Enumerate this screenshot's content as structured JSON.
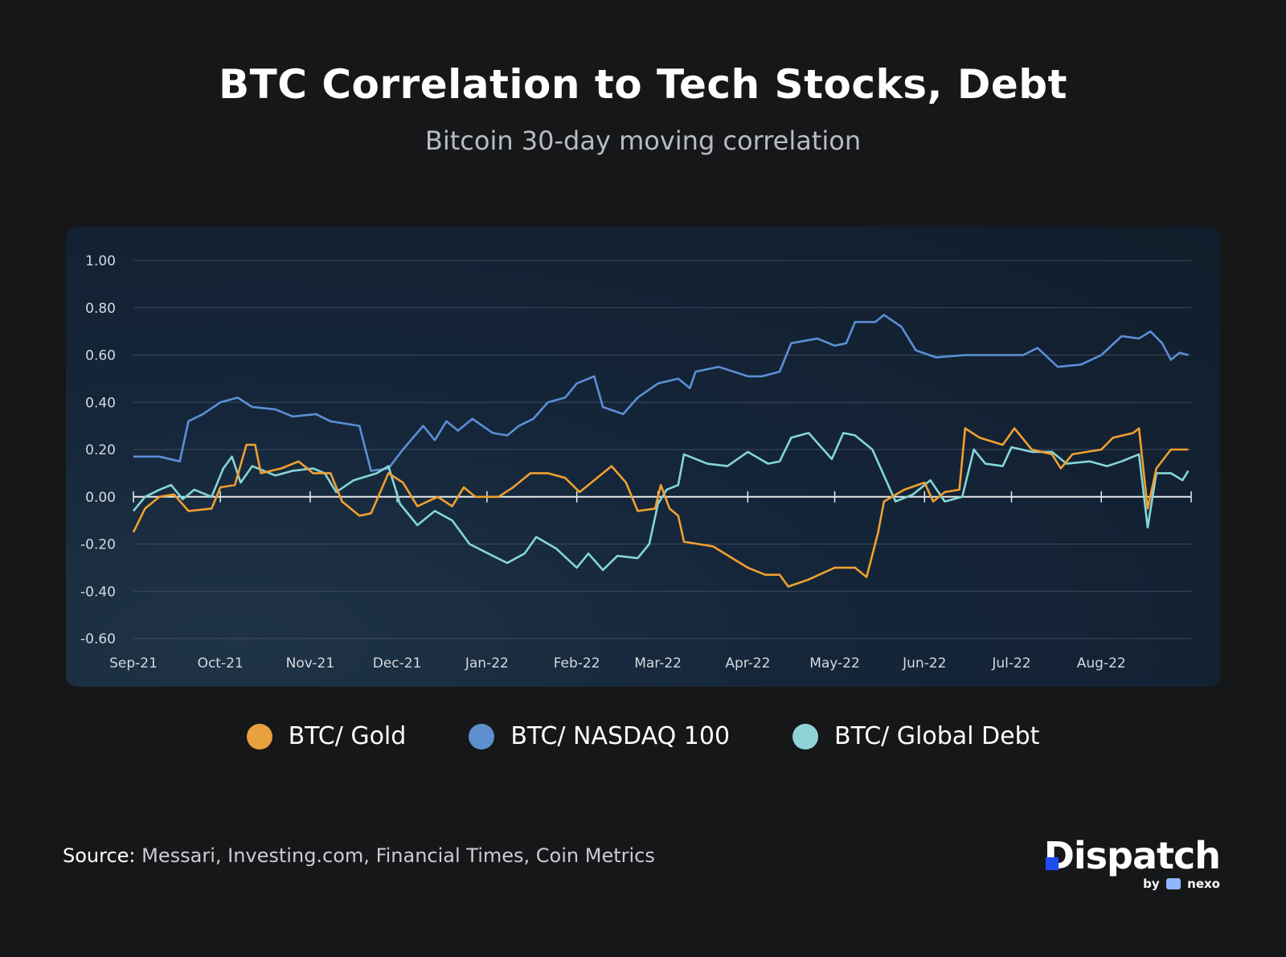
{
  "chart_data": {
    "type": "line",
    "title": "BTC Correlation to Tech Stocks, Debt",
    "subtitle": "Bitcoin 30-day moving correlation",
    "xlabel": "",
    "ylabel": "",
    "ylim": [
      -0.6,
      1.0
    ],
    "yticks": [
      "1.00",
      "0.80",
      "0.60",
      "0.40",
      "0.20",
      "0.00",
      "-0.20",
      "-0.40",
      "-0.60"
    ],
    "xlim": [
      "2021-09-01",
      "2022-09-01"
    ],
    "xticks": [
      {
        "date": "2021-09-01",
        "label": "Sep-21"
      },
      {
        "date": "2021-10-01",
        "label": "Oct-21"
      },
      {
        "date": "2021-11-01",
        "label": "Nov-21"
      },
      {
        "date": "2021-12-01",
        "label": "Dec-21"
      },
      {
        "date": "2022-01-01",
        "label": "Jan-22"
      },
      {
        "date": "2022-02-01",
        "label": "Feb-22"
      },
      {
        "date": "2022-03-01",
        "label": "Mar-22"
      },
      {
        "date": "2022-04-01",
        "label": "Apr-22"
      },
      {
        "date": "2022-05-01",
        "label": "May-22"
      },
      {
        "date": "2022-06-01",
        "label": "Jun-22"
      },
      {
        "date": "2022-07-01",
        "label": "Jul-22"
      },
      {
        "date": "2022-08-01",
        "label": "Aug-22"
      }
    ],
    "grid": true,
    "legend_position": "bottom",
    "series": [
      {
        "name": "BTC/ Gold",
        "color": "#f0a030",
        "points": [
          [
            "2021-09-01",
            -0.15
          ],
          [
            "2021-09-05",
            -0.05
          ],
          [
            "2021-09-10",
            0.0
          ],
          [
            "2021-09-15",
            0.01
          ],
          [
            "2021-09-20",
            -0.06
          ],
          [
            "2021-09-28",
            -0.05
          ],
          [
            "2021-10-01",
            0.04
          ],
          [
            "2021-10-06",
            0.05
          ],
          [
            "2021-10-10",
            0.22
          ],
          [
            "2021-10-13",
            0.22
          ],
          [
            "2021-10-15",
            0.1
          ],
          [
            "2021-10-22",
            0.12
          ],
          [
            "2021-10-28",
            0.15
          ],
          [
            "2021-11-02",
            0.1
          ],
          [
            "2021-11-08",
            0.1
          ],
          [
            "2021-11-12",
            -0.02
          ],
          [
            "2021-11-18",
            -0.08
          ],
          [
            "2021-11-22",
            -0.07
          ],
          [
            "2021-11-28",
            0.1
          ],
          [
            "2021-12-03",
            0.06
          ],
          [
            "2021-12-08",
            -0.04
          ],
          [
            "2021-12-15",
            0.0
          ],
          [
            "2021-12-20",
            -0.04
          ],
          [
            "2021-12-24",
            0.04
          ],
          [
            "2021-12-28",
            0.0
          ],
          [
            "2022-01-05",
            0.0
          ],
          [
            "2022-01-10",
            0.04
          ],
          [
            "2022-01-16",
            0.1
          ],
          [
            "2022-01-22",
            0.1
          ],
          [
            "2022-01-28",
            0.08
          ],
          [
            "2022-02-02",
            0.02
          ],
          [
            "2022-02-08",
            0.08
          ],
          [
            "2022-02-13",
            0.13
          ],
          [
            "2022-02-18",
            0.06
          ],
          [
            "2022-02-22",
            -0.06
          ],
          [
            "2022-02-28",
            -0.05
          ],
          [
            "2022-03-02",
            0.05
          ],
          [
            "2022-03-05",
            -0.05
          ],
          [
            "2022-03-08",
            -0.08
          ],
          [
            "2022-03-10",
            -0.19
          ],
          [
            "2022-03-20",
            -0.21
          ],
          [
            "2022-04-01",
            -0.3
          ],
          [
            "2022-04-07",
            -0.33
          ],
          [
            "2022-04-12",
            -0.33
          ],
          [
            "2022-04-15",
            -0.38
          ],
          [
            "2022-04-22",
            -0.35
          ],
          [
            "2022-05-01",
            -0.3
          ],
          [
            "2022-05-08",
            -0.3
          ],
          [
            "2022-05-12",
            -0.34
          ],
          [
            "2022-05-16",
            -0.15
          ],
          [
            "2022-05-18",
            -0.02
          ],
          [
            "2022-05-25",
            0.03
          ],
          [
            "2022-06-01",
            0.06
          ],
          [
            "2022-06-04",
            -0.02
          ],
          [
            "2022-06-08",
            0.02
          ],
          [
            "2022-06-13",
            0.03
          ],
          [
            "2022-06-15",
            0.29
          ],
          [
            "2022-06-20",
            0.25
          ],
          [
            "2022-06-28",
            0.22
          ],
          [
            "2022-07-02",
            0.29
          ],
          [
            "2022-07-08",
            0.2
          ],
          [
            "2022-07-15",
            0.18
          ],
          [
            "2022-07-18",
            0.12
          ],
          [
            "2022-07-22",
            0.18
          ],
          [
            "2022-08-01",
            0.2
          ],
          [
            "2022-08-05",
            0.25
          ],
          [
            "2022-08-12",
            0.27
          ],
          [
            "2022-08-14",
            0.29
          ],
          [
            "2022-08-17",
            -0.05
          ],
          [
            "2022-08-20",
            0.12
          ],
          [
            "2022-08-25",
            0.2
          ],
          [
            "2022-08-31",
            0.2
          ]
        ]
      },
      {
        "name": "BTC/ NASDAQ 100",
        "color": "#5b8fd6",
        "points": [
          [
            "2021-09-01",
            0.17
          ],
          [
            "2021-09-10",
            0.17
          ],
          [
            "2021-09-17",
            0.15
          ],
          [
            "2021-09-20",
            0.32
          ],
          [
            "2021-09-25",
            0.35
          ],
          [
            "2021-10-01",
            0.4
          ],
          [
            "2021-10-07",
            0.42
          ],
          [
            "2021-10-12",
            0.38
          ],
          [
            "2021-10-20",
            0.37
          ],
          [
            "2021-10-26",
            0.34
          ],
          [
            "2021-11-03",
            0.35
          ],
          [
            "2021-11-08",
            0.32
          ],
          [
            "2021-11-18",
            0.3
          ],
          [
            "2021-11-22",
            0.11
          ],
          [
            "2021-11-28",
            0.12
          ],
          [
            "2021-12-03",
            0.2
          ],
          [
            "2021-12-10",
            0.3
          ],
          [
            "2021-12-14",
            0.24
          ],
          [
            "2021-12-18",
            0.32
          ],
          [
            "2021-12-22",
            0.28
          ],
          [
            "2021-12-27",
            0.33
          ],
          [
            "2022-01-03",
            0.27
          ],
          [
            "2022-01-08",
            0.26
          ],
          [
            "2022-01-12",
            0.3
          ],
          [
            "2022-01-17",
            0.33
          ],
          [
            "2022-01-22",
            0.4
          ],
          [
            "2022-01-28",
            0.42
          ],
          [
            "2022-02-01",
            0.48
          ],
          [
            "2022-02-07",
            0.51
          ],
          [
            "2022-02-10",
            0.38
          ],
          [
            "2022-02-17",
            0.35
          ],
          [
            "2022-02-22",
            0.42
          ],
          [
            "2022-03-01",
            0.48
          ],
          [
            "2022-03-08",
            0.5
          ],
          [
            "2022-03-12",
            0.46
          ],
          [
            "2022-03-14",
            0.53
          ],
          [
            "2022-03-22",
            0.55
          ],
          [
            "2022-04-01",
            0.51
          ],
          [
            "2022-04-06",
            0.51
          ],
          [
            "2022-04-12",
            0.53
          ],
          [
            "2022-04-16",
            0.65
          ],
          [
            "2022-04-25",
            0.67
          ],
          [
            "2022-05-01",
            0.64
          ],
          [
            "2022-05-05",
            0.65
          ],
          [
            "2022-05-08",
            0.74
          ],
          [
            "2022-05-15",
            0.74
          ],
          [
            "2022-05-18",
            0.77
          ],
          [
            "2022-05-24",
            0.72
          ],
          [
            "2022-05-29",
            0.62
          ],
          [
            "2022-06-05",
            0.59
          ],
          [
            "2022-06-15",
            0.6
          ],
          [
            "2022-06-25",
            0.6
          ],
          [
            "2022-07-05",
            0.6
          ],
          [
            "2022-07-10",
            0.63
          ],
          [
            "2022-07-17",
            0.55
          ],
          [
            "2022-07-25",
            0.56
          ],
          [
            "2022-08-01",
            0.6
          ],
          [
            "2022-08-08",
            0.68
          ],
          [
            "2022-08-14",
            0.67
          ],
          [
            "2022-08-18",
            0.7
          ],
          [
            "2022-08-22",
            0.65
          ],
          [
            "2022-08-25",
            0.58
          ],
          [
            "2022-08-28",
            0.61
          ],
          [
            "2022-08-31",
            0.6
          ]
        ]
      },
      {
        "name": "BTC/ Global Debt",
        "color": "#84d6d9",
        "points": [
          [
            "2021-09-01",
            -0.06
          ],
          [
            "2021-09-05",
            0.0
          ],
          [
            "2021-09-10",
            0.03
          ],
          [
            "2021-09-14",
            0.05
          ],
          [
            "2021-09-18",
            -0.01
          ],
          [
            "2021-09-22",
            0.03
          ],
          [
            "2021-09-28",
            0.0
          ],
          [
            "2021-10-02",
            0.12
          ],
          [
            "2021-10-05",
            0.17
          ],
          [
            "2021-10-08",
            0.06
          ],
          [
            "2021-10-12",
            0.13
          ],
          [
            "2021-10-20",
            0.09
          ],
          [
            "2021-10-26",
            0.11
          ],
          [
            "2021-11-02",
            0.12
          ],
          [
            "2021-11-06",
            0.1
          ],
          [
            "2021-11-10",
            0.02
          ],
          [
            "2021-11-16",
            0.07
          ],
          [
            "2021-11-24",
            0.1
          ],
          [
            "2021-11-28",
            0.13
          ],
          [
            "2021-12-02",
            -0.03
          ],
          [
            "2021-12-08",
            -0.12
          ],
          [
            "2021-12-14",
            -0.06
          ],
          [
            "2021-12-20",
            -0.1
          ],
          [
            "2021-12-26",
            -0.2
          ],
          [
            "2022-01-03",
            -0.25
          ],
          [
            "2022-01-08",
            -0.28
          ],
          [
            "2022-01-14",
            -0.24
          ],
          [
            "2022-01-18",
            -0.17
          ],
          [
            "2022-01-25",
            -0.22
          ],
          [
            "2022-02-01",
            -0.3
          ],
          [
            "2022-02-05",
            -0.24
          ],
          [
            "2022-02-10",
            -0.31
          ],
          [
            "2022-02-15",
            -0.25
          ],
          [
            "2022-02-22",
            -0.26
          ],
          [
            "2022-02-26",
            -0.2
          ],
          [
            "2022-03-01",
            -0.03
          ],
          [
            "2022-03-04",
            0.03
          ],
          [
            "2022-03-08",
            0.05
          ],
          [
            "2022-03-10",
            0.18
          ],
          [
            "2022-03-18",
            0.14
          ],
          [
            "2022-03-25",
            0.13
          ],
          [
            "2022-04-01",
            0.19
          ],
          [
            "2022-04-08",
            0.14
          ],
          [
            "2022-04-12",
            0.15
          ],
          [
            "2022-04-16",
            0.25
          ],
          [
            "2022-04-22",
            0.27
          ],
          [
            "2022-04-30",
            0.16
          ],
          [
            "2022-05-04",
            0.27
          ],
          [
            "2022-05-08",
            0.26
          ],
          [
            "2022-05-14",
            0.2
          ],
          [
            "2022-05-18",
            0.09
          ],
          [
            "2022-05-22",
            -0.02
          ],
          [
            "2022-05-28",
            0.01
          ],
          [
            "2022-06-03",
            0.07
          ],
          [
            "2022-06-08",
            -0.02
          ],
          [
            "2022-06-14",
            0.0
          ],
          [
            "2022-06-18",
            0.2
          ],
          [
            "2022-06-22",
            0.14
          ],
          [
            "2022-06-28",
            0.13
          ],
          [
            "2022-07-01",
            0.21
          ],
          [
            "2022-07-08",
            0.19
          ],
          [
            "2022-07-15",
            0.19
          ],
          [
            "2022-07-20",
            0.14
          ],
          [
            "2022-07-28",
            0.15
          ],
          [
            "2022-08-03",
            0.13
          ],
          [
            "2022-08-08",
            0.15
          ],
          [
            "2022-08-14",
            0.18
          ],
          [
            "2022-08-17",
            -0.13
          ],
          [
            "2022-08-20",
            0.1
          ],
          [
            "2022-08-25",
            0.1
          ],
          [
            "2022-08-29",
            0.07
          ],
          [
            "2022-08-31",
            0.11
          ]
        ]
      }
    ]
  },
  "source": {
    "label": "Source:",
    "text": "Messari, Investing.com, Financial Times, Coin Metrics"
  },
  "logo": {
    "name": "Dispatch",
    "by": "by",
    "partner": "nexo"
  }
}
